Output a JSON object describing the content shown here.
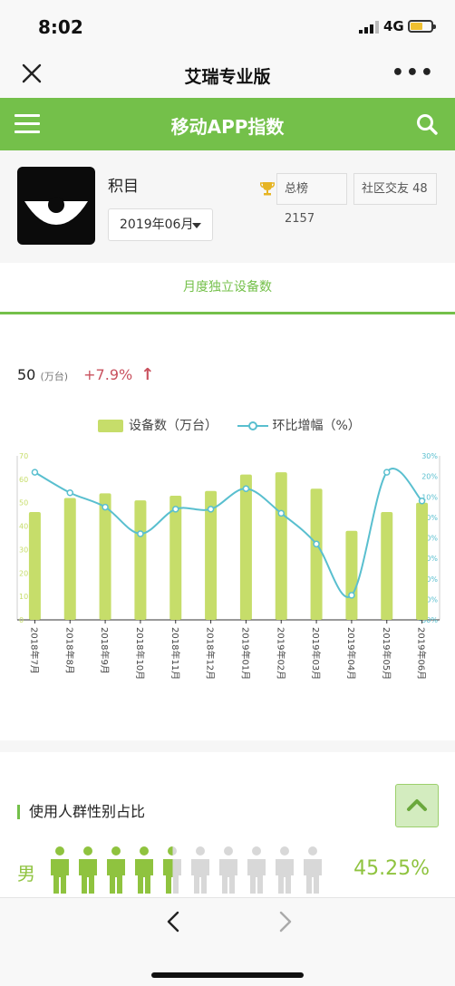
{
  "status": {
    "time": "8:02",
    "network": "4G"
  },
  "nav": {
    "title": "艾瑞专业版",
    "more": "•••"
  },
  "header": {
    "title": "移动APP指数"
  },
  "app": {
    "name": "积目",
    "month": "2019年06月",
    "rank_total": "总榜 2157",
    "rank_category": "社区交友 48"
  },
  "tab": {
    "label": "月度独立设备数"
  },
  "summary": {
    "value": "50",
    "unit": "(万台)",
    "growth": "+7.9%",
    "arrow": "↑"
  },
  "legend": {
    "bar": "设备数（万台）",
    "line": "环比增幅（%）"
  },
  "chart_data": {
    "type": "bar",
    "categories": [
      "2018年7月",
      "2018年8月",
      "2018年9月",
      "2018年10月",
      "2018年11月",
      "2018年12月",
      "2019年01月",
      "2019年02月",
      "2019年03月",
      "2019年04月",
      "2019年05月",
      "2019年06月"
    ],
    "series": [
      {
        "name": "设备数（万台）",
        "type": "bar",
        "axis": "left",
        "values": [
          46,
          52,
          54,
          51,
          53,
          55,
          62,
          63,
          56,
          38,
          46,
          50
        ]
      },
      {
        "name": "环比增幅（%）",
        "type": "line",
        "axis": "right",
        "values": [
          22,
          12,
          5,
          -8,
          4,
          4,
          14,
          2,
          -13,
          -38,
          22,
          8
        ]
      }
    ],
    "y_left": {
      "min": 0,
      "max": 70,
      "ticks": [
        "0",
        "10",
        "20",
        "30",
        "40",
        "50",
        "60",
        "70"
      ]
    },
    "y_right": {
      "min": -50,
      "max": 30,
      "ticks": [
        "-50%",
        "-40%",
        "-30%",
        "-20%",
        "-10%",
        "0%",
        "10%",
        "20%",
        "30%"
      ]
    },
    "colors": {
      "bar": "#c6dd6a",
      "line": "#59bfcf",
      "left_axis_text": "#c6dd6a",
      "right_axis_text": "#59bfcf"
    }
  },
  "gender": {
    "title": "使用人群性别占比",
    "label": "男",
    "percent": "45.25%",
    "value": 0.4525,
    "icon_count": 10
  },
  "colors": {
    "brand_green": "#74c04a",
    "accent_green": "#8fc33f"
  }
}
